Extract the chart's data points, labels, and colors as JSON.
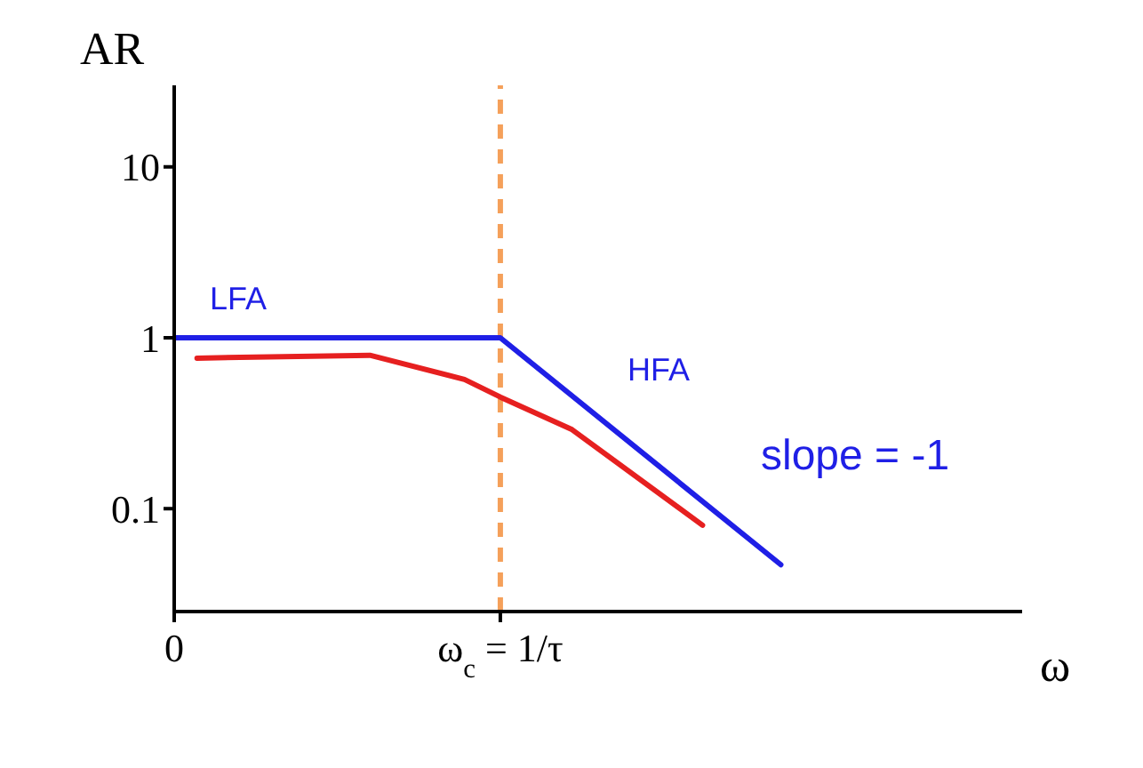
{
  "chart_data": {
    "type": "line",
    "xlabel": "ω",
    "ylabel": "AR",
    "log": "y",
    "marker": "none",
    "grid": false,
    "legend": false,
    "xlim": [
      0,
      2.6
    ],
    "xticks": [
      {
        "value": 0,
        "label": "0"
      },
      {
        "value": 1,
        "label": "ω$_{c}$ = 1/τ"
      }
    ],
    "ylim": [
      0.025,
      30
    ],
    "yticks": [
      0.1,
      1,
      10
    ],
    "series": [
      {
        "color": "#1f1fe6",
        "x": [
          0,
          1,
          1.86
        ],
        "values": [
          1,
          1,
          0.047
        ]
      },
      {
        "color": "#e62020",
        "x": [
          0.07,
          0.6,
          0.89,
          1,
          1.22,
          1.62
        ],
        "values": [
          0.76,
          0.79,
          0.57,
          0.45,
          0.29,
          0.08
        ]
      }
    ],
    "ref_lines": [
      {
        "axis": "x",
        "value": 1,
        "color": "#f5a05a",
        "line_style": "dashed"
      }
    ],
    "annotations": [
      "LFA",
      "HFA",
      "slope = -1"
    ]
  }
}
